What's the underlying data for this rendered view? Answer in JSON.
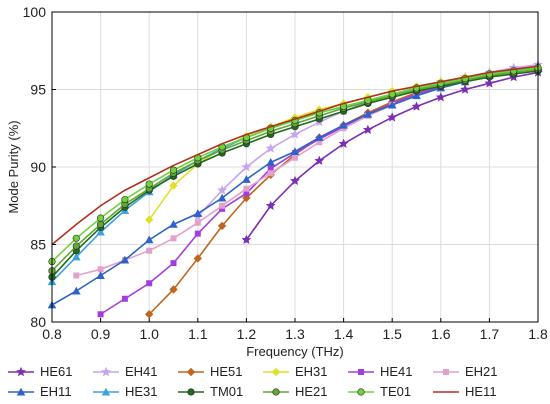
{
  "chart_data": {
    "type": "line",
    "title": "",
    "xlabel": "Frequency (THz)",
    "ylabel": "Mode Purity (%)",
    "xlim": [
      0.8,
      1.8
    ],
    "ylim": [
      80,
      100
    ],
    "xticks": [
      0.8,
      0.9,
      1.0,
      1.1,
      1.2,
      1.3,
      1.4,
      1.5,
      1.6,
      1.7,
      1.8
    ],
    "yticks": [
      80,
      85,
      90,
      95,
      100
    ],
    "grid": true,
    "legend_position": "bottom",
    "series": [
      {
        "name": "HE61",
        "color": "#7b2fb3",
        "marker": "star",
        "x": [
          1.2,
          1.25,
          1.3,
          1.35,
          1.4,
          1.45,
          1.5,
          1.55,
          1.6,
          1.65,
          1.7,
          1.75,
          1.8
        ],
        "y": [
          85.3,
          87.5,
          89.1,
          90.4,
          91.5,
          92.4,
          93.2,
          93.9,
          94.5,
          95.0,
          95.4,
          95.8,
          96.1
        ]
      },
      {
        "name": "EH41",
        "color": "#c7a5ec",
        "marker": "star",
        "x": [
          1.1,
          1.15,
          1.2,
          1.25,
          1.3,
          1.35,
          1.4,
          1.45,
          1.5,
          1.55,
          1.6,
          1.65,
          1.7,
          1.75,
          1.8
        ],
        "y": [
          86.8,
          88.5,
          90.0,
          91.2,
          92.1,
          92.9,
          93.6,
          94.2,
          94.7,
          95.1,
          95.5,
          95.8,
          96.1,
          96.4,
          96.6
        ]
      },
      {
        "name": "HE51",
        "color": "#c0661c",
        "marker": "diamond",
        "x": [
          1.0,
          1.05,
          1.1,
          1.15,
          1.2,
          1.25,
          1.3,
          1.35,
          1.4,
          1.45,
          1.5,
          1.55,
          1.6,
          1.65,
          1.7,
          1.75,
          1.8
        ],
        "y": [
          80.5,
          82.1,
          84.1,
          86.2,
          88.0,
          89.5,
          90.8,
          91.9,
          92.7,
          93.5,
          94.2,
          94.8,
          95.2,
          95.6,
          95.9,
          96.1,
          96.3
        ]
      },
      {
        "name": "EH31",
        "color": "#e0e02a",
        "marker": "diamond",
        "x": [
          1.0,
          1.05,
          1.1,
          1.15,
          1.2,
          1.25,
          1.3,
          1.35,
          1.4,
          1.45,
          1.5,
          1.55,
          1.6,
          1.65,
          1.7,
          1.75,
          1.8
        ],
        "y": [
          86.6,
          88.8,
          90.2,
          91.2,
          92.0,
          92.6,
          93.2,
          93.7,
          94.1,
          94.5,
          94.9,
          95.2,
          95.5,
          95.8,
          96.0,
          96.2,
          96.4
        ]
      },
      {
        "name": "HE41",
        "color": "#a33de0",
        "marker": "square",
        "x": [
          0.9,
          0.95,
          1.0,
          1.05,
          1.1,
          1.15,
          1.2,
          1.25,
          1.3,
          1.35,
          1.4,
          1.45,
          1.5,
          1.55,
          1.6,
          1.65,
          1.7,
          1.75,
          1.8
        ],
        "y": [
          80.5,
          81.5,
          82.5,
          83.8,
          85.7,
          87.3,
          88.3,
          89.9,
          90.9,
          91.8,
          92.6,
          93.4,
          94.1,
          94.7,
          95.2,
          95.6,
          95.9,
          96.2,
          96.4
        ]
      },
      {
        "name": "EH21",
        "color": "#e2a0cc",
        "marker": "square",
        "x": [
          0.85,
          0.9,
          0.95,
          1.0,
          1.05,
          1.1,
          1.15,
          1.2,
          1.25,
          1.3,
          1.35,
          1.4,
          1.45,
          1.5,
          1.55,
          1.6,
          1.65,
          1.7,
          1.75,
          1.8
        ],
        "y": [
          83.0,
          83.4,
          84.0,
          84.6,
          85.4,
          86.4,
          87.5,
          88.6,
          89.6,
          90.6,
          91.6,
          92.5,
          93.3,
          94.0,
          94.6,
          95.1,
          95.5,
          95.9,
          96.2,
          96.5
        ]
      },
      {
        "name": "EH11",
        "color": "#2c63c8",
        "marker": "triangle",
        "x": [
          0.8,
          0.85,
          0.9,
          0.95,
          1.0,
          1.05,
          1.1,
          1.15,
          1.2,
          1.25,
          1.3,
          1.35,
          1.4,
          1.45,
          1.5,
          1.55,
          1.6,
          1.65,
          1.7,
          1.75,
          1.8
        ],
        "y": [
          81.1,
          82.0,
          83.0,
          84.0,
          85.3,
          86.3,
          87.0,
          88.0,
          89.2,
          90.3,
          91.0,
          91.9,
          92.7,
          93.4,
          94.0,
          94.6,
          95.1,
          95.5,
          95.9,
          96.2,
          96.5
        ]
      },
      {
        "name": "HE31",
        "color": "#3aa3e0",
        "marker": "triangle",
        "x": [
          0.8,
          0.85,
          0.9,
          0.95,
          1.0,
          1.05,
          1.1,
          1.15,
          1.2,
          1.25,
          1.3,
          1.35,
          1.4,
          1.45,
          1.5,
          1.55,
          1.6,
          1.65,
          1.7,
          1.75,
          1.8
        ],
        "y": [
          82.6,
          84.2,
          85.8,
          87.2,
          88.4,
          89.5,
          90.4,
          91.2,
          91.9,
          92.5,
          93.0,
          93.5,
          93.9,
          94.3,
          94.7,
          95.1,
          95.4,
          95.7,
          96.0,
          96.2,
          96.4
        ]
      },
      {
        "name": "TM01",
        "color": "#1f6b1f",
        "marker": "circle",
        "x": [
          0.8,
          0.85,
          0.9,
          0.95,
          1.0,
          1.05,
          1.1,
          1.15,
          1.2,
          1.25,
          1.3,
          1.35,
          1.4,
          1.45,
          1.5,
          1.55,
          1.6,
          1.65,
          1.7,
          1.75,
          1.8
        ],
        "y": [
          82.9,
          84.6,
          86.1,
          87.4,
          88.5,
          89.4,
          90.2,
          90.9,
          91.5,
          92.1,
          92.6,
          93.1,
          93.6,
          94.1,
          94.5,
          94.9,
          95.2,
          95.5,
          95.8,
          96.0,
          96.2
        ]
      },
      {
        "name": "HE21",
        "color": "#5fa832",
        "marker": "circle",
        "x": [
          0.8,
          0.85,
          0.9,
          0.95,
          1.0,
          1.05,
          1.1,
          1.15,
          1.2,
          1.25,
          1.3,
          1.35,
          1.4,
          1.45,
          1.5,
          1.55,
          1.6,
          1.65,
          1.7,
          1.75,
          1.8
        ],
        "y": [
          83.3,
          84.9,
          86.3,
          87.6,
          88.6,
          89.6,
          90.4,
          91.1,
          91.7,
          92.3,
          92.8,
          93.3,
          93.8,
          94.2,
          94.6,
          95.0,
          95.3,
          95.6,
          95.9,
          96.1,
          96.3
        ]
      },
      {
        "name": "TE01",
        "color": "#6fd23a",
        "marker": "circle",
        "x": [
          0.8,
          0.85,
          0.9,
          0.95,
          1.0,
          1.05,
          1.1,
          1.15,
          1.2,
          1.25,
          1.3,
          1.35,
          1.4,
          1.45,
          1.5,
          1.55,
          1.6,
          1.65,
          1.7,
          1.75,
          1.8
        ],
        "y": [
          83.9,
          85.4,
          86.7,
          87.9,
          88.9,
          89.8,
          90.6,
          91.3,
          91.9,
          92.5,
          93.0,
          93.5,
          93.9,
          94.3,
          94.7,
          95.1,
          95.4,
          95.7,
          96.0,
          96.2,
          96.4
        ]
      },
      {
        "name": "HE11",
        "color": "#b0301e",
        "marker": "none",
        "x": [
          0.8,
          0.85,
          0.9,
          0.95,
          1.0,
          1.05,
          1.1,
          1.15,
          1.2,
          1.25,
          1.3,
          1.35,
          1.4,
          1.45,
          1.5,
          1.55,
          1.6,
          1.65,
          1.7,
          1.75,
          1.8
        ],
        "y": [
          85.0,
          86.3,
          87.5,
          88.5,
          89.3,
          90.1,
          90.8,
          91.5,
          92.1,
          92.6,
          93.1,
          93.6,
          94.1,
          94.5,
          94.9,
          95.2,
          95.5,
          95.8,
          96.1,
          96.3,
          96.5
        ]
      }
    ]
  }
}
